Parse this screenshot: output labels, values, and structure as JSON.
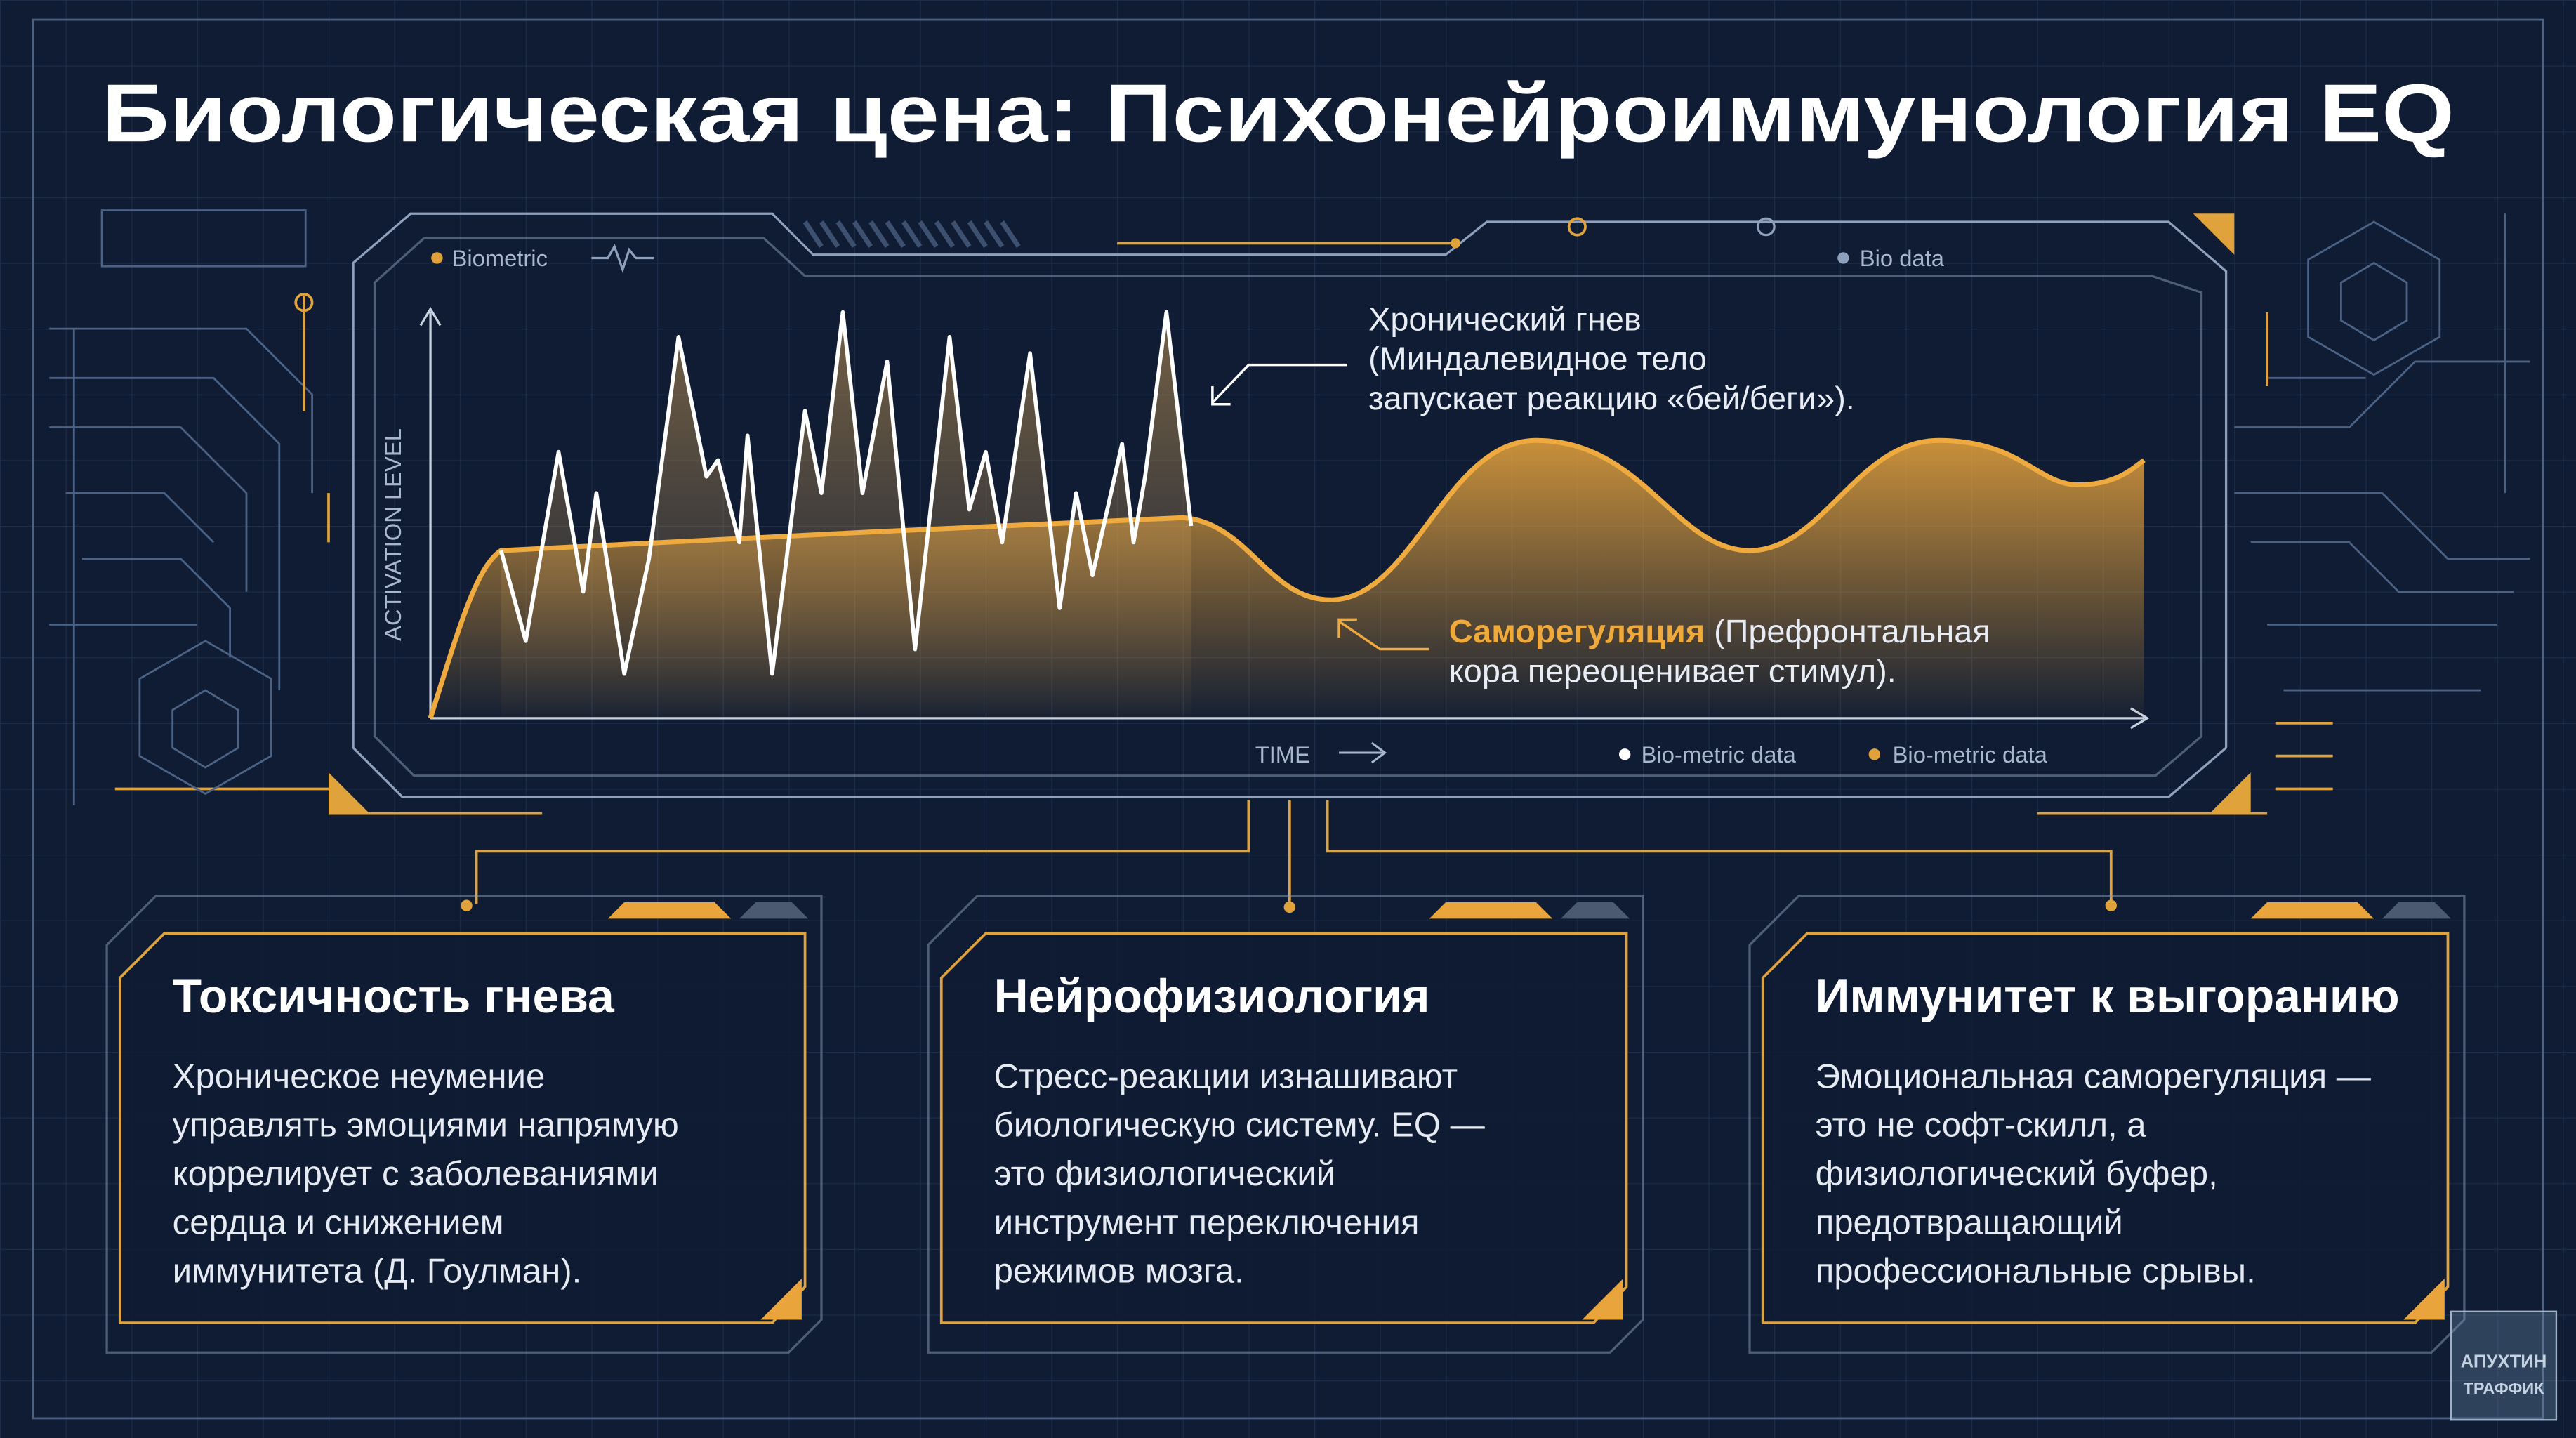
{
  "header": {
    "title": "Биологическая цена: Психонейроиммунология EQ"
  },
  "chart": {
    "tags": [
      "Biometric",
      "Bio data"
    ],
    "y_label": "ACTIVATION LEVEL",
    "x_label": "TIME",
    "legend": [
      "Bio-metric data",
      "Bio-metric data"
    ],
    "annotation_anger": [
      "Хронический гнев",
      "(Миндалевидное тело",
      "запускает реакцию «бей/беги»)."
    ],
    "annotation_regulation": {
      "highlight": "Саморегуляция",
      "rest": [
        " (Префронтальная",
        "кора переоценивает стимул)."
      ]
    }
  },
  "cards": [
    {
      "title": "Токсичность гнева",
      "lines": [
        "Хроническое неумение",
        "управлять эмоциями напрямую",
        "коррелирует с заболеваниями",
        "сердца и снижением",
        "иммунитета (Д. Гоулман)."
      ]
    },
    {
      "title": "Нейрофизиология",
      "lines": [
        "Стресс-реакции изнашивают",
        "биологическую систему. EQ —",
        "это физиологический",
        "инструмент переключения",
        "режимов мозга."
      ]
    },
    {
      "title": "Иммунитет к выгоранию",
      "lines": [
        "Эмоциональная саморегуляция —",
        "это не софт-скилл, а",
        "физиологический буфер,",
        "предотвращающий",
        "профессиональные срывы."
      ]
    }
  ],
  "watermark": [
    "АПУХТИН",
    "ТРАФФИК"
  ]
}
